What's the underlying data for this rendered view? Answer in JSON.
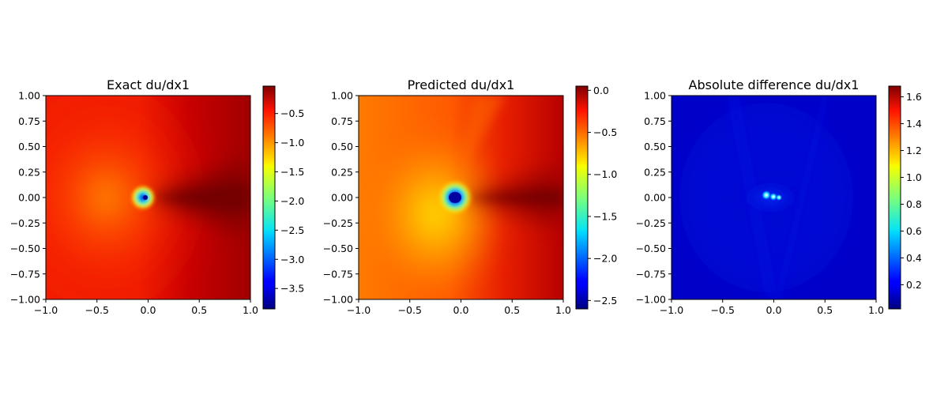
{
  "chart_data": [
    {
      "type": "heatmap",
      "title": "Exact du/dx1",
      "colormap": "jet",
      "x_ticks": [
        "−1.0",
        "−0.5",
        "0.0",
        "0.5",
        "1.0"
      ],
      "y_ticks": [
        "1.00",
        "0.75",
        "0.50",
        "0.25",
        "0.00",
        "−0.25",
        "−0.50",
        "−0.75",
        "−1.00"
      ],
      "xlim": [
        -1,
        1
      ],
      "ylim": [
        -1,
        1
      ],
      "colorbar": {
        "range": [
          -3.85,
          -0.03
        ],
        "ticks": [
          {
            "value": -0.5,
            "label": "−0.5"
          },
          {
            "value": -1.0,
            "label": "−1.0"
          },
          {
            "value": -1.5,
            "label": "−1.5"
          },
          {
            "value": -2.0,
            "label": "−2.0"
          },
          {
            "value": -2.5,
            "label": "−2.5"
          },
          {
            "value": -3.0,
            "label": "−3.0"
          },
          {
            "value": -3.5,
            "label": "−3.5"
          }
        ]
      }
    },
    {
      "type": "heatmap",
      "title": "Predicted du/dx1",
      "colormap": "jet",
      "x_ticks": [
        "−1.0",
        "−0.5",
        "0.0",
        "0.5",
        "1.0"
      ],
      "y_ticks": [
        "1.00",
        "0.75",
        "0.50",
        "0.25",
        "0.00",
        "−0.25",
        "−0.50",
        "−0.75",
        "−1.00"
      ],
      "xlim": [
        -1,
        1
      ],
      "ylim": [
        -1,
        1
      ],
      "colorbar": {
        "range": [
          -2.6,
          0.05
        ],
        "ticks": [
          {
            "value": 0.0,
            "label": "0.0"
          },
          {
            "value": -0.5,
            "label": "−0.5"
          },
          {
            "value": -1.0,
            "label": "−1.0"
          },
          {
            "value": -1.5,
            "label": "−1.5"
          },
          {
            "value": -2.0,
            "label": "−2.0"
          },
          {
            "value": -2.5,
            "label": "−2.5"
          }
        ]
      }
    },
    {
      "type": "heatmap",
      "title": "Absolute difference du/dx1",
      "colormap": "jet",
      "x_ticks": [
        "−1.0",
        "−0.5",
        "0.0",
        "0.5",
        "1.0"
      ],
      "y_ticks": [
        "1.00",
        "0.75",
        "0.50",
        "0.25",
        "0.00",
        "−0.25",
        "−0.50",
        "−0.75",
        "−1.00"
      ],
      "xlim": [
        -1,
        1
      ],
      "ylim": [
        -1,
        1
      ],
      "colorbar": {
        "range": [
          0.02,
          1.68
        ],
        "ticks": [
          {
            "value": 1.6,
            "label": "1.6"
          },
          {
            "value": 1.4,
            "label": "1.4"
          },
          {
            "value": 1.2,
            "label": "1.2"
          },
          {
            "value": 1.0,
            "label": "1.0"
          },
          {
            "value": 0.8,
            "label": "0.8"
          },
          {
            "value": 0.6,
            "label": "0.6"
          },
          {
            "value": 0.4,
            "label": "0.4"
          },
          {
            "value": 0.2,
            "label": "0.2"
          }
        ]
      }
    }
  ]
}
